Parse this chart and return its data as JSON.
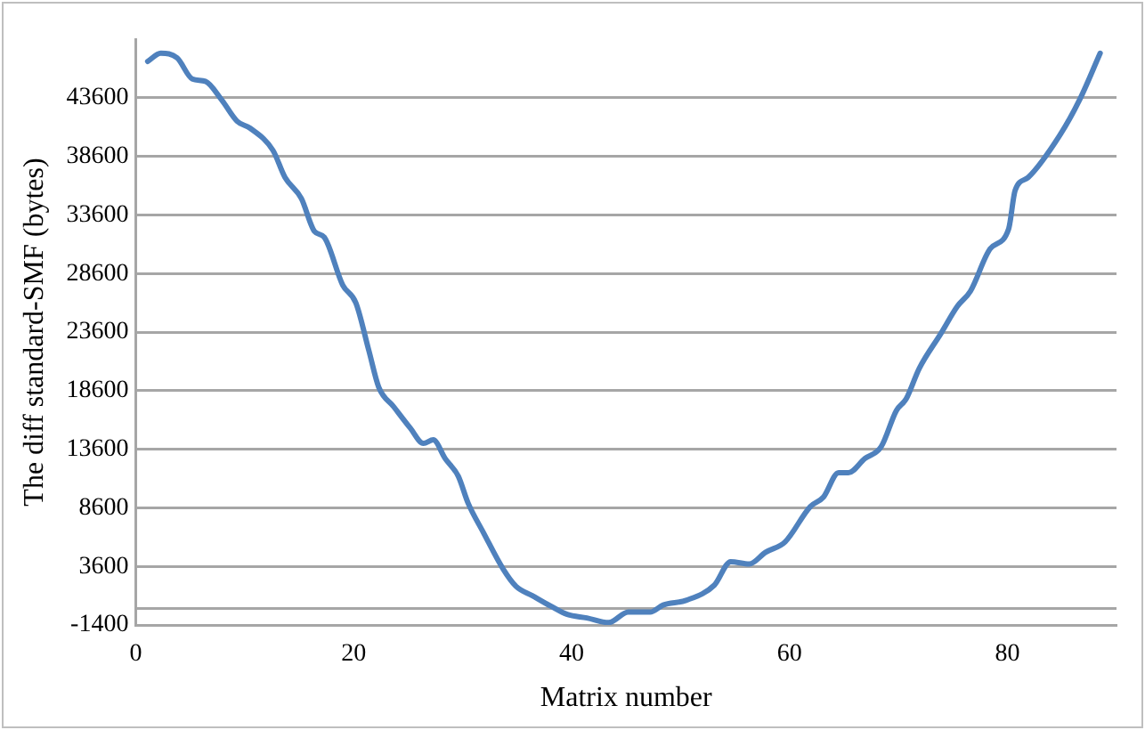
{
  "chart_data": {
    "type": "line",
    "xlabel": "Matrix number",
    "ylabel": "The diff standard-SMF (bytes)",
    "xlim": [
      0,
      90
    ],
    "xticks": [
      0,
      20,
      40,
      60,
      80
    ],
    "ylim": [
      -1400,
      48600
    ],
    "yticks": [
      -1400,
      3600,
      8600,
      13600,
      18600,
      23600,
      28600,
      33600,
      38600,
      43600
    ],
    "grid": "y",
    "legend": false,
    "marker": "none",
    "line_style": "solid",
    "ref_lines": [
      {
        "axis": "y",
        "value": 0,
        "color": "#a6a6a6"
      }
    ],
    "series": [
      {
        "color": "#4f81bd",
        "x": [
          1.1,
          2.3,
          3.8,
          5.2,
          6.4,
          7.9,
          9.3,
          10.5,
          12.6,
          13.7,
          15.2,
          16.4,
          17.3,
          19.0,
          20.2,
          21.4,
          22.3,
          23.7,
          25.2,
          26.4,
          27.3,
          28.4,
          29.6,
          30.5,
          31.9,
          33.7,
          34.9,
          36.4,
          38.1,
          39.6,
          41.4,
          43.4,
          45.2,
          47.2,
          48.4,
          50.5,
          53.1,
          54.6,
          56.3,
          57.8,
          59.6,
          61.9,
          63.1,
          64.5,
          65.4,
          66.9,
          68.4,
          69.8,
          70.7,
          71.9,
          73.9,
          75.4,
          76.6,
          78.4,
          80.1,
          80.7,
          81.9,
          84.8,
          86.6,
          88.5
        ],
        "values": [
          46700,
          47400,
          47000,
          45200,
          45000,
          43400,
          41600,
          41000,
          39100,
          36800,
          35000,
          32200,
          31700,
          27600,
          26100,
          22000,
          18900,
          17200,
          15400,
          14100,
          14400,
          12800,
          11300,
          9000,
          6500,
          3400,
          1900,
          1100,
          200,
          -500,
          -800,
          -1200,
          -300,
          -300,
          300,
          700,
          2000,
          4000,
          3800,
          4800,
          5700,
          8700,
          9500,
          11600,
          11600,
          12800,
          13800,
          16900,
          17900,
          20500,
          23500,
          25800,
          27100,
          30700,
          32400,
          35700,
          36800,
          40400,
          43400,
          47400
        ]
      }
    ]
  }
}
